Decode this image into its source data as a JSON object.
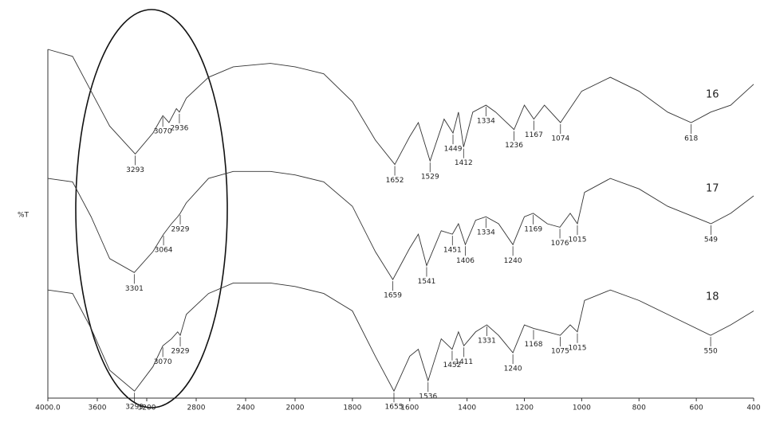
{
  "chart_data": {
    "type": "line",
    "y_label": "%T",
    "xlim": [
      4000,
      400
    ],
    "ylim": [
      0,
      100
    ],
    "xticks": [
      {
        "value": 4000,
        "label": "4000.0"
      },
      3600,
      3200,
      2800,
      2400,
      2000,
      1800,
      1600,
      1400,
      1200,
      1000,
      800,
      600,
      400
    ],
    "series": [
      {
        "name": "16",
        "color": "#333333",
        "x": [
          4000,
          3800,
          3650,
          3500,
          3293,
          3150,
          3070,
          3020,
          2960,
          2936,
          2880,
          2700,
          2500,
          2200,
          2000,
          1900,
          1800,
          1720,
          1652,
          1600,
          1570,
          1529,
          1480,
          1449,
          1430,
          1412,
          1380,
          1334,
          1300,
          1236,
          1200,
          1167,
          1130,
          1074,
          1000,
          900,
          800,
          700,
          618,
          550,
          480,
          400
        ],
        "values": [
          100,
          98,
          88,
          78,
          70,
          76,
          81,
          79,
          83,
          82,
          86,
          92,
          95,
          96,
          95,
          93,
          85,
          74,
          67,
          75,
          79,
          68,
          80,
          76,
          82,
          72,
          82,
          84,
          82,
          77,
          84,
          80,
          84,
          79,
          88,
          92,
          88,
          82,
          79,
          82,
          84,
          90
        ],
        "peaks": [
          3293,
          3070,
          2936,
          1652,
          1529,
          1449,
          1412,
          1334,
          1236,
          1167,
          1074,
          618
        ]
      },
      {
        "name": "17",
        "color": "#333333",
        "x": [
          4000,
          3800,
          3650,
          3500,
          3301,
          3150,
          3064,
          3000,
          2950,
          2929,
          2880,
          2700,
          2500,
          2200,
          2000,
          1900,
          1800,
          1720,
          1659,
          1600,
          1570,
          1541,
          1490,
          1451,
          1430,
          1406,
          1370,
          1334,
          1290,
          1240,
          1200,
          1169,
          1120,
          1076,
          1040,
          1015,
          990,
          900,
          800,
          700,
          549,
          480,
          400
        ],
        "values": [
          63,
          62,
          52,
          40,
          36,
          42,
          47,
          50,
          52,
          53,
          56,
          63,
          65,
          65,
          64,
          62,
          55,
          42,
          34,
          43,
          47,
          38,
          48,
          47,
          50,
          44,
          51,
          52,
          50,
          44,
          52,
          53,
          50,
          49,
          53,
          50,
          59,
          63,
          60,
          55,
          50,
          53,
          58
        ],
        "peaks": [
          3301,
          3064,
          2929,
          1659,
          1541,
          1451,
          1406,
          1334,
          1240,
          1169,
          1076,
          1015,
          549
        ]
      },
      {
        "name": "18",
        "color": "#333333",
        "x": [
          4000,
          3800,
          3650,
          3500,
          3299,
          3150,
          3070,
          3000,
          2950,
          2929,
          2880,
          2700,
          2500,
          2200,
          2000,
          1900,
          1800,
          1720,
          1655,
          1600,
          1570,
          1536,
          1490,
          1452,
          1430,
          1411,
          1370,
          1331,
          1290,
          1240,
          1200,
          1168,
          1120,
          1075,
          1040,
          1015,
          990,
          900,
          800,
          700,
          550,
          480,
          400
        ],
        "values": [
          31,
          30,
          20,
          8,
          2,
          9,
          15,
          17,
          19,
          18,
          24,
          30,
          33,
          33,
          32,
          30,
          25,
          12,
          2,
          12,
          14,
          5,
          17,
          14,
          19,
          15,
          19,
          21,
          18,
          13,
          21,
          20,
          19,
          18,
          21,
          19,
          28,
          31,
          28,
          24,
          18,
          21,
          25
        ],
        "peaks": [
          3299,
          3070,
          2929,
          1655,
          1536,
          1452,
          1411,
          1331,
          1240,
          1168,
          1075,
          1015,
          550
        ]
      }
    ]
  }
}
